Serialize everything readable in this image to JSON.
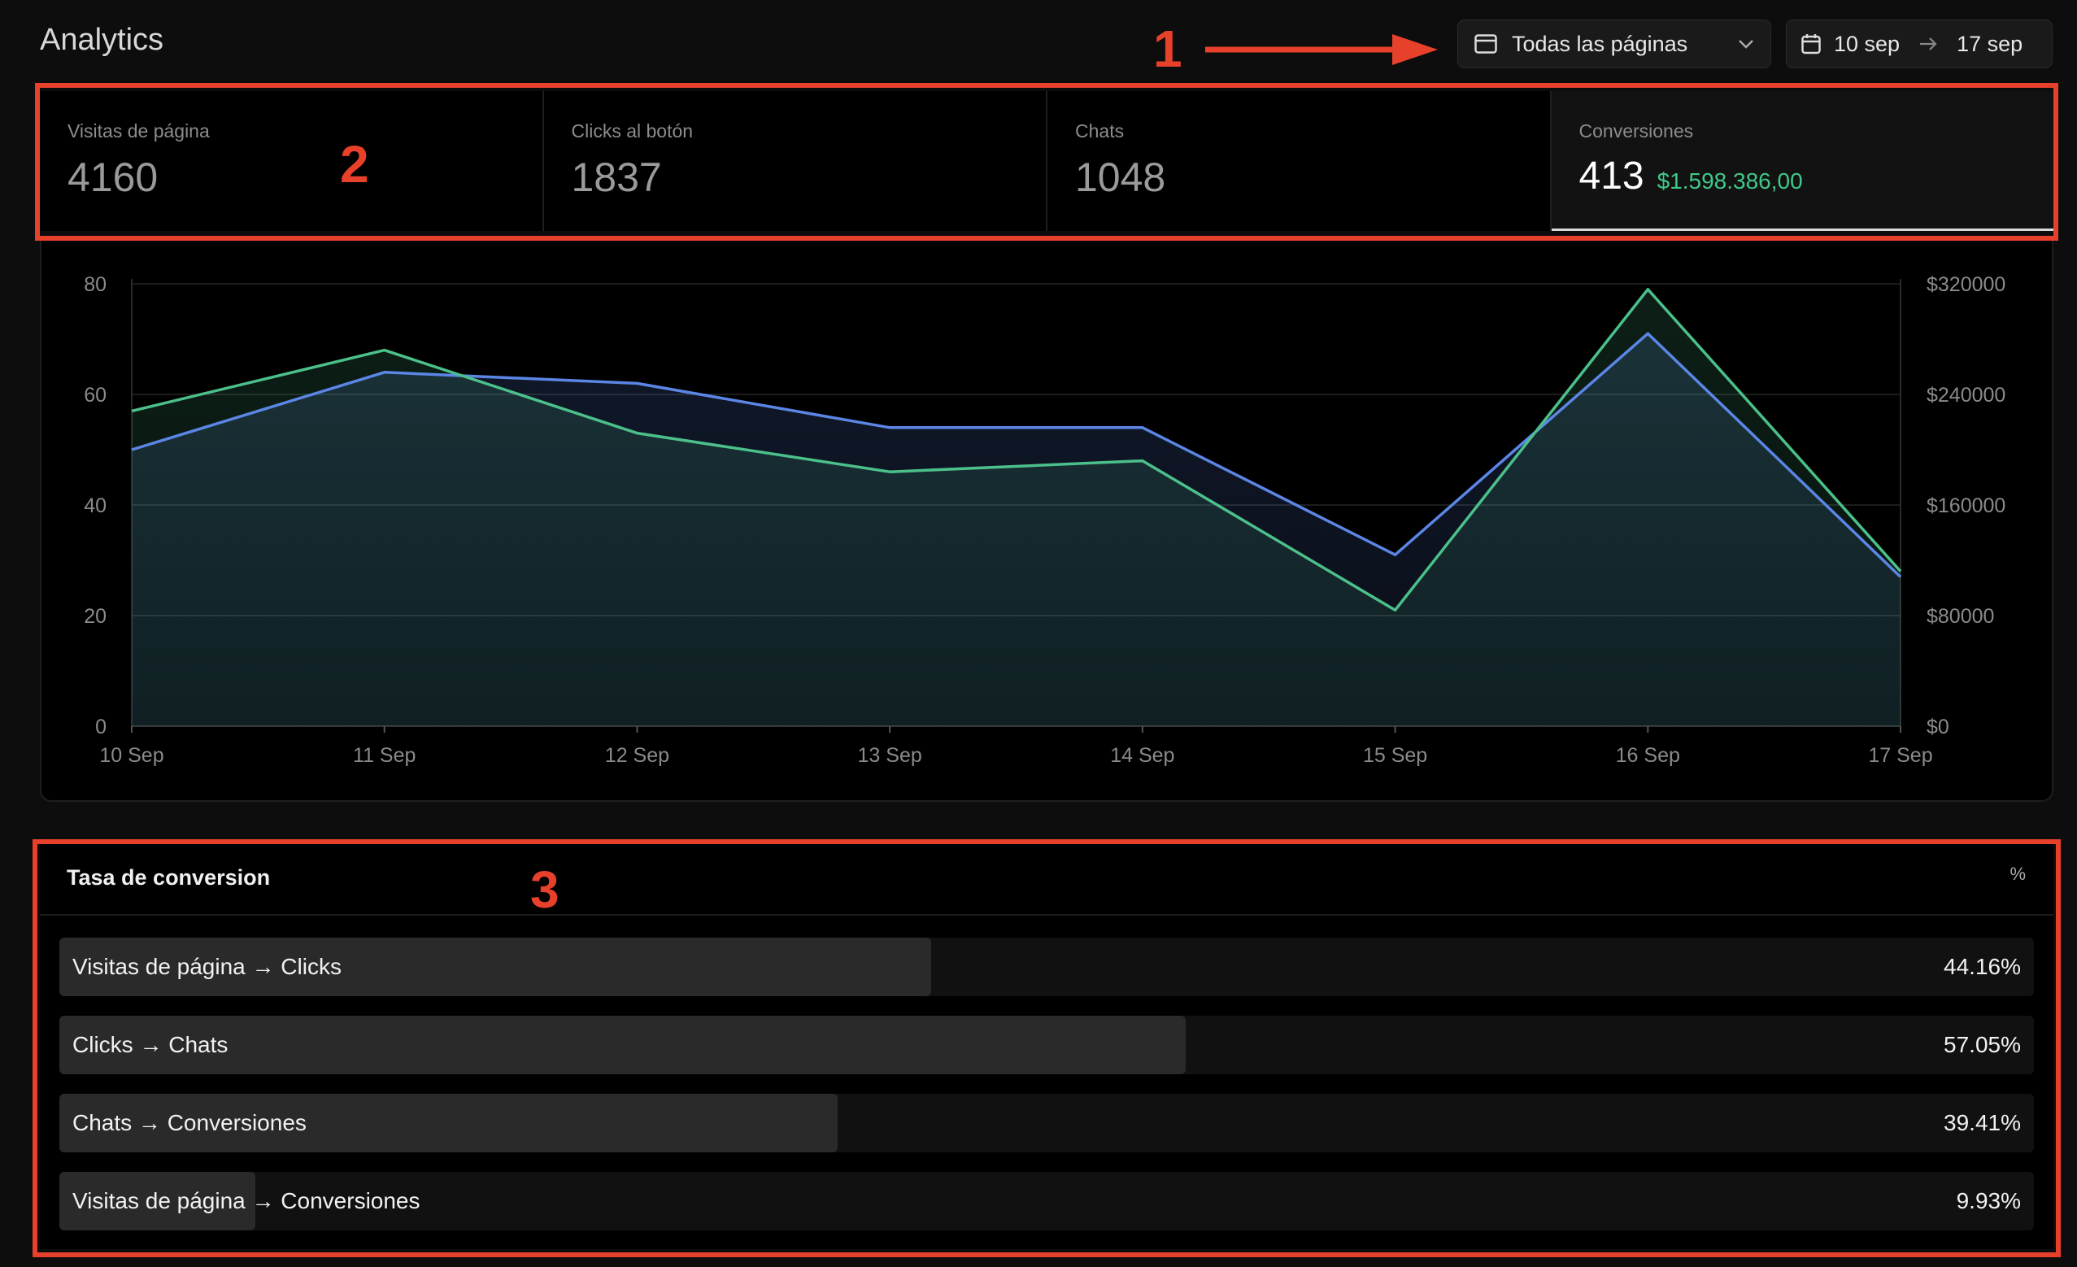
{
  "header": {
    "title": "Analytics"
  },
  "filters": {
    "pages_label": "Todas las páginas",
    "date_from": "10 sep",
    "date_to": "17 sep"
  },
  "annotations": {
    "n1": "1",
    "n2": "2",
    "n3": "3"
  },
  "kpis": [
    {
      "label": "Visitas de página",
      "value": "4160"
    },
    {
      "label": "Clicks al botón",
      "value": "1837"
    },
    {
      "label": "Chats",
      "value": "1048"
    },
    {
      "label": "Conversiones",
      "value": "413",
      "money": "$1.598.386,00"
    }
  ],
  "chart_data": {
    "type": "area",
    "categories": [
      "10 Sep",
      "11 Sep",
      "12 Sep",
      "13 Sep",
      "14 Sep",
      "15 Sep",
      "16 Sep",
      "17 Sep"
    ],
    "y_left": {
      "ticks": [
        "0",
        "20",
        "40",
        "60",
        "80"
      ],
      "range": [
        0,
        80
      ]
    },
    "y_right": {
      "ticks": [
        "$0",
        "$80000",
        "$160000",
        "$240000",
        "$320000"
      ],
      "range": [
        0,
        320000
      ]
    },
    "series": [
      {
        "color": "#5b86e5",
        "values": [
          50,
          64,
          62,
          54,
          54,
          31,
          71,
          27
        ]
      },
      {
        "color": "#4cc08a",
        "values": [
          57,
          68,
          53,
          46,
          48,
          21,
          79,
          28
        ]
      }
    ],
    "grid": true
  },
  "conversion": {
    "title": "Tasa de conversion",
    "unit": "%",
    "rows": [
      {
        "label": "Visitas de página → Clicks",
        "value": "44.16%",
        "fraction": 0.4416
      },
      {
        "label": "Clicks → Chats",
        "value": "57.05%",
        "fraction": 0.5705
      },
      {
        "label": "Chats → Conversiones",
        "value": "39.41%",
        "fraction": 0.3941
      },
      {
        "label": "Visitas de página → Conversiones",
        "value": "9.93%",
        "fraction": 0.0993
      }
    ]
  }
}
